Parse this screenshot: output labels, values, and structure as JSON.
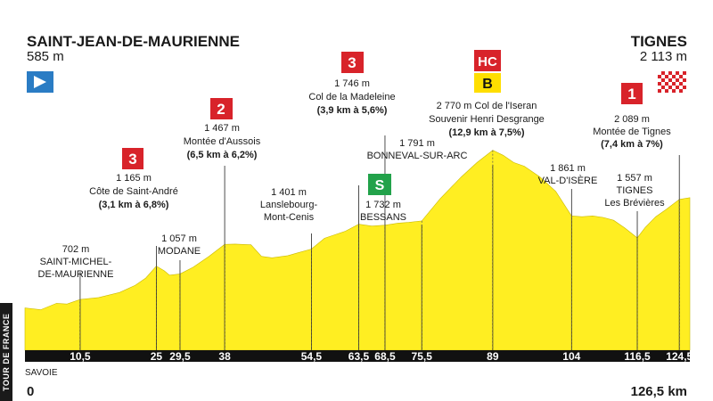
{
  "chart_data": {
    "type": "area",
    "start": {
      "name": "SAINT-JEAN-DE-MAURIENNE",
      "alt": "585 m"
    },
    "finish": {
      "name": "TIGNES",
      "alt": "2 113 m"
    },
    "region": "SAVOIE",
    "start_km": "0",
    "total_km": "126,5 km",
    "km_ticks": [
      "10,5",
      "25",
      "29,5",
      "38",
      "54,5",
      "63,5",
      "68,5",
      "75,5",
      "89",
      "104",
      "116,5",
      "124,5"
    ],
    "km_tick_values": [
      10.5,
      25,
      29.5,
      38,
      54.5,
      63.5,
      68.5,
      75.5,
      89,
      104,
      116.5,
      124.5
    ],
    "xlim": [
      0,
      126.5
    ],
    "ylim": [
      0,
      3000
    ],
    "profile_km": [
      0,
      3,
      6,
      8,
      10.5,
      14,
      18,
      21,
      23,
      25,
      26.5,
      27.5,
      29.5,
      32,
      35,
      38,
      40,
      43,
      45,
      47,
      50,
      52,
      54.5,
      57,
      59,
      61,
      63.5,
      66,
      68.5,
      71,
      73,
      75.5,
      79,
      83,
      86,
      89,
      91,
      93,
      95,
      98,
      101,
      104,
      106,
      108,
      110,
      112,
      114,
      116.5,
      118,
      120,
      122,
      124.5,
      126.5
    ],
    "profile_alt": [
      585,
      560,
      650,
      640,
      702,
      730,
      800,
      900,
      1000,
      1165,
      1100,
      1040,
      1057,
      1150,
      1300,
      1467,
      1470,
      1460,
      1300,
      1280,
      1310,
      1350,
      1401,
      1550,
      1600,
      1650,
      1746,
      1720,
      1732,
      1760,
      1770,
      1791,
      2100,
      2400,
      2600,
      2770,
      2700,
      2600,
      2550,
      2400,
      2200,
      1861,
      1850,
      1860,
      1840,
      1800,
      1700,
      1557,
      1700,
      1850,
      1950,
      2089,
      2113
    ],
    "climbs": [
      {
        "cat": "3",
        "name": "Côte de Saint-André",
        "alt": "1 165 m",
        "detail": "(3,1 km à 6,8%)"
      },
      {
        "cat": "2",
        "name": "Montée d'Aussois",
        "alt": "1 467 m",
        "detail": "(6,5 km à 6,2%)"
      },
      {
        "cat": "3",
        "name": "Col de la Madeleine",
        "alt": "1 746 m",
        "detail": "(3,9 km à 5,6%)"
      },
      {
        "cat": "HC",
        "bonus": "B",
        "name1": "Col de l'Iseran",
        "name2": "Souvenir Henri Desgrange",
        "alt": "2 770 m",
        "detail": "(12,9 km à 7,5%)"
      },
      {
        "cat": "1",
        "name": "Montée de Tignes",
        "alt": "2 089 m",
        "detail": "(7,4 km à 7%)"
      }
    ],
    "towns": [
      {
        "alt": "702 m",
        "line1": "SAINT-MICHEL-",
        "line2": "DE-MAURIENNE"
      },
      {
        "alt": "1 057 m",
        "line1": "MODANE"
      },
      {
        "alt": "1 401 m",
        "line1": "Lanslebourg-",
        "line2": "Mont-Cenis"
      },
      {
        "alt": "1 791 m",
        "line1": "BONNEVAL-SUR-ARC"
      },
      {
        "alt": "1 732 m",
        "line1": "BESSANS",
        "sprint": "S"
      },
      {
        "alt": "1 861 m",
        "line1": "VAL-D'ISÈRE"
      },
      {
        "alt": "1 557 m",
        "line1": "TIGNES",
        "line2": "Les Brévières"
      }
    ],
    "colors": {
      "profile": "#ffee22",
      "climb_badge": "#d8232a",
      "hc_bonus": "#ffde00",
      "sprint": "#22a24a",
      "start_flag": "#2a7cc4",
      "axis_band": "#111111"
    },
    "icons": {
      "start": "play-flag-icon",
      "finish": "checkered-flag-icon"
    },
    "grid": false,
    "legend": "none"
  },
  "brand": "TOUR DE FRANCE"
}
